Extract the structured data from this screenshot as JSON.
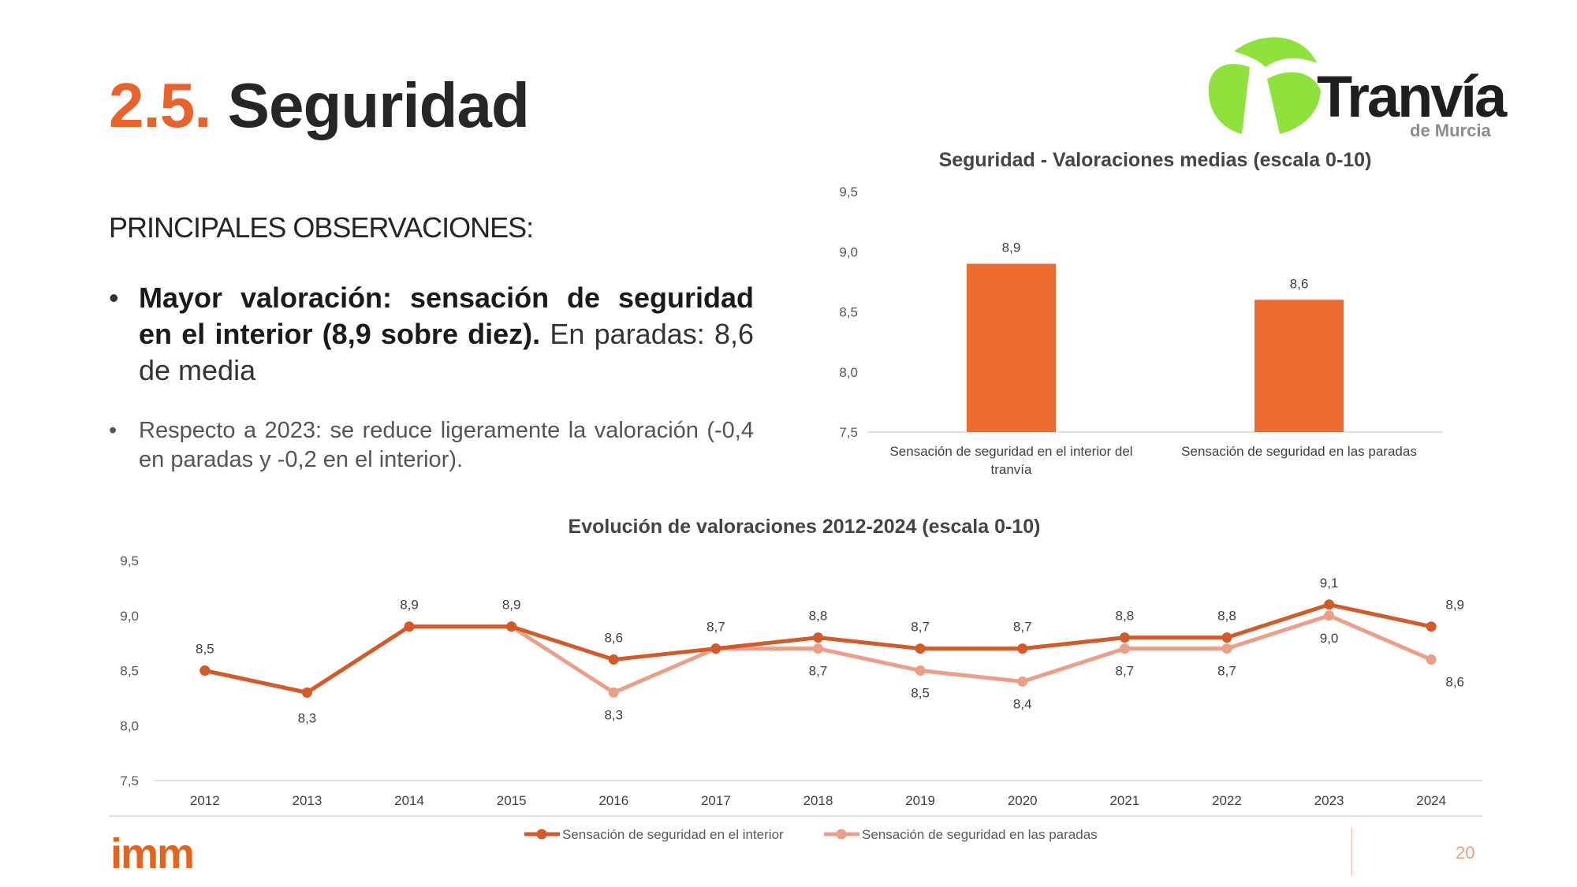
{
  "header": {
    "number": "2.5.",
    "title": "Seguridad"
  },
  "logo": {
    "name": "Tranvía",
    "sub": "de Murcia"
  },
  "observations": {
    "heading": "PRINCIPALES OBSERVACIONES:",
    "bullet1_bold": "Mayor valoración: sensación de seguridad en el interior (8,9 sobre diez).",
    "bullet1_rest": " En paradas: 8,6 de media",
    "bullet2": "Respecto a 2023: se reduce ligeramente la valoración (-0,4 en paradas y -0,2 en el interior)."
  },
  "footer": {
    "brand": "imm",
    "page": "20"
  },
  "colors": {
    "accent": "#e8622a",
    "series_interior": "#d35a29",
    "series_paradas": "#ec9f88",
    "bar": "#ed6a30"
  },
  "chart_data": [
    {
      "type": "bar",
      "title": "Seguridad - Valoraciones medias (escala 0-10)",
      "categories": [
        "Sensación de seguridad en el interior del tranvía",
        "Sensación de seguridad en las paradas"
      ],
      "category_lines": [
        [
          "Sensación de seguridad en el interior del",
          "tranvía"
        ],
        [
          "Sensación de seguridad en las paradas"
        ]
      ],
      "values": [
        8.9,
        8.6
      ],
      "value_labels": [
        "8,9",
        "8,6"
      ],
      "ylim": [
        7.5,
        9.5
      ],
      "yticks": [
        7.5,
        8.0,
        8.5,
        9.0,
        9.5
      ],
      "ytick_labels": [
        "7,5",
        "8,0",
        "8,5",
        "9,0",
        "9,5"
      ],
      "grid": false
    },
    {
      "type": "line",
      "title": "Evolución de valoraciones 2012-2024 (escala 0-10)",
      "x": [
        "2012",
        "2013",
        "2014",
        "2015",
        "2016",
        "2017",
        "2018",
        "2019",
        "2020",
        "2021",
        "2022",
        "2023",
        "2024"
      ],
      "ylim": [
        7.5,
        9.5
      ],
      "yticks": [
        7.5,
        8.0,
        8.5,
        9.0,
        9.5
      ],
      "ytick_labels": [
        "7,5",
        "8,0",
        "8,5",
        "9,0",
        "9,5"
      ],
      "series": [
        {
          "name": "Sensación de seguridad en el interior",
          "values": [
            8.5,
            8.3,
            8.9,
            8.9,
            8.6,
            8.7,
            8.8,
            8.7,
            8.7,
            8.8,
            8.8,
            9.1,
            8.9
          ],
          "labels": [
            "8,5",
            "",
            "8,9",
            "8,9",
            "8,6",
            "8,7",
            "8,8",
            "8,7",
            "8,7",
            "8,8",
            "8,8",
            "9,1",
            "8,9"
          ]
        },
        {
          "name": "Sensación de seguridad en las paradas",
          "values": [
            8.5,
            8.3,
            8.9,
            8.9,
            8.3,
            8.7,
            8.7,
            8.5,
            8.4,
            8.7,
            8.7,
            9.0,
            8.6
          ],
          "labels": [
            "",
            "8,3",
            "",
            "",
            "8,3",
            "",
            "8,7",
            "8,5",
            "8,4",
            "8,7",
            "8,7",
            "9,0",
            "8,6"
          ]
        }
      ],
      "legend": "bottom",
      "grid": false
    }
  ]
}
